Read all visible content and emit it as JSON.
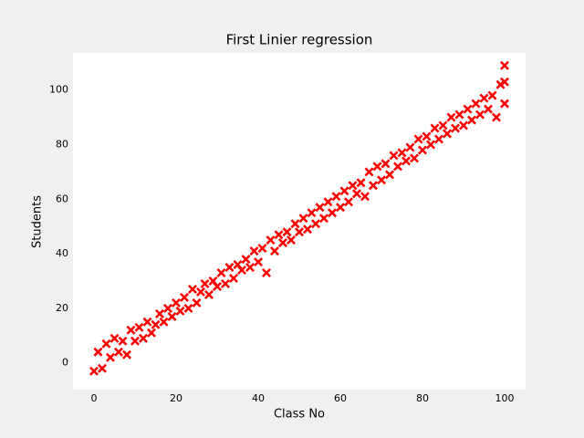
{
  "chart_data": {
    "type": "scatter",
    "title": "First Linier regression",
    "x_label": "Class No",
    "y_label": "Students",
    "color": "#ff0000",
    "marker": "X",
    "x": [
      0,
      1,
      2,
      3,
      4,
      5,
      6,
      7,
      8,
      9,
      10,
      11,
      12,
      13,
      14,
      15,
      16,
      17,
      18,
      19,
      20,
      21,
      22,
      23,
      24,
      25,
      26,
      27,
      28,
      29,
      30,
      31,
      32,
      33,
      34,
      35,
      36,
      37,
      38,
      39,
      40,
      41,
      42,
      43,
      44,
      45,
      46,
      47,
      48,
      49,
      50,
      51,
      52,
      53,
      54,
      55,
      56,
      57,
      58,
      59,
      60,
      61,
      62,
      63,
      64,
      65,
      66,
      67,
      68,
      69,
      70,
      71,
      72,
      73,
      74,
      75,
      76,
      77,
      78,
      79,
      80,
      81,
      82,
      83,
      84,
      85,
      86,
      87,
      88,
      89,
      90,
      91,
      92,
      93,
      94,
      95,
      96,
      97,
      98,
      99,
      100,
      100,
      100
    ],
    "y": [
      -3,
      4,
      -2,
      7,
      2,
      9,
      4,
      8,
      3,
      12,
      8,
      13,
      9,
      15,
      11,
      14,
      18,
      15,
      20,
      17,
      22,
      19,
      24,
      20,
      27,
      22,
      26,
      29,
      25,
      30,
      28,
      33,
      29,
      35,
      31,
      36,
      34,
      38,
      35,
      41,
      37,
      42,
      33,
      45,
      41,
      47,
      44,
      48,
      45,
      51,
      48,
      53,
      49,
      55,
      51,
      57,
      53,
      59,
      55,
      61,
      57,
      63,
      59,
      65,
      62,
      66,
      61,
      70,
      65,
      72,
      67,
      73,
      69,
      76,
      72,
      77,
      74,
      79,
      75,
      82,
      78,
      83,
      80,
      86,
      82,
      87,
      84,
      90,
      86,
      91,
      87,
      93,
      89,
      95,
      91,
      97,
      93,
      98,
      90,
      102,
      109,
      95,
      103
    ],
    "xlim": [
      -5.1,
      105.1
    ],
    "ylim": [
      -9.8,
      113.6
    ],
    "xticks": [
      0,
      20,
      40,
      60,
      80,
      100
    ],
    "yticks": [
      0,
      20,
      40,
      60,
      80,
      100
    ],
    "grid": false
  }
}
